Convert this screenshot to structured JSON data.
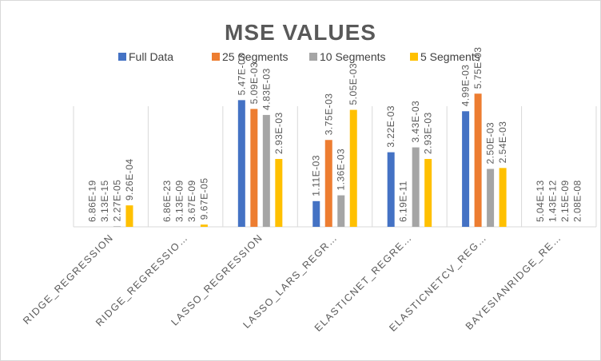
{
  "chart_data": {
    "type": "bar",
    "title": "MSE VALUES",
    "xlabel": "",
    "ylabel": "",
    "ylim": [
      0,
      0.006
    ],
    "grid": "vertical category separators",
    "legend_position": "top",
    "categories": [
      "RIDGE_REGRESSION",
      "RIDGE_REGRESSIO…",
      "LASSO_REGRESSION",
      "LASSO_LARS_REGR…",
      "ELASTICNET_REGRE…",
      "ELASTICNETCV_REG…",
      "BAYESIANRIDGE_RE…"
    ],
    "series": [
      {
        "name": "Full Data",
        "color": "#4472C4",
        "values": [
          6.86e-19,
          6.86e-23,
          0.00547,
          0.00111,
          0.00322,
          0.00499,
          5.04e-13
        ],
        "labels": [
          "6.86E-19",
          "6.86E-23",
          "5.47E-03",
          "1.11E-03",
          "3.22E-03",
          "4.99E-03",
          "5.04E-13"
        ]
      },
      {
        "name": "25 Segments",
        "color": "#ED7D31",
        "values": [
          3.13e-15,
          3.13e-09,
          0.00509,
          0.00375,
          6.19e-11,
          0.00575,
          1.43e-12
        ],
        "labels": [
          "3.13E-15",
          "3.13E-09",
          "5.09E-03",
          "3.75E-03",
          "6.19E-11",
          "5.75E-03",
          "1.43E-12"
        ]
      },
      {
        "name": "10 Segments",
        "color": "#A5A5A5",
        "values": [
          2.27e-05,
          3.67e-09,
          0.00483,
          0.00136,
          0.00343,
          0.0025,
          2.15e-09
        ],
        "labels": [
          "2.27E-05",
          "3.67E-09",
          "4.83E-03",
          "1.36E-03",
          "3.43E-03",
          "2.50E-03",
          "2.15E-09"
        ]
      },
      {
        "name": "5 Segments",
        "color": "#FFC000",
        "values": [
          0.000926,
          9.67e-05,
          0.00293,
          0.00505,
          0.00293,
          0.00254,
          2.08e-08
        ],
        "labels": [
          "9.26E-04",
          "9.67E-05",
          "2.93E-03",
          "5.05E-03",
          "2.93E-03",
          "2.54E-03",
          "2.08E-08"
        ]
      }
    ]
  }
}
